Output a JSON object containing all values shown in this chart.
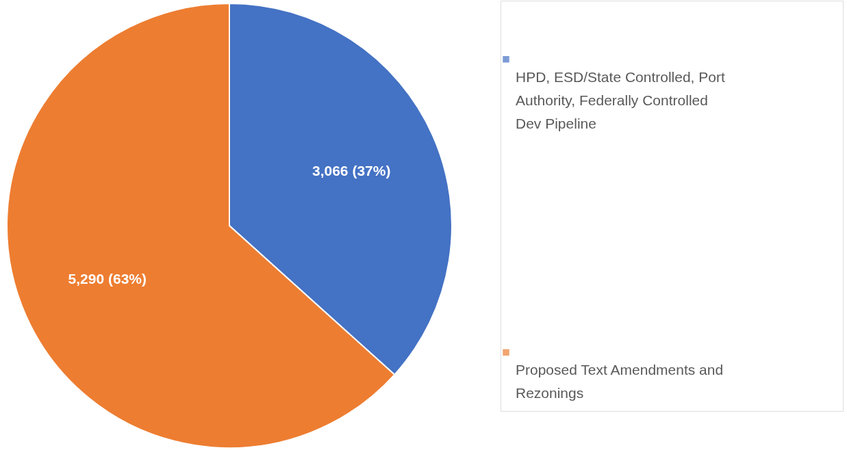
{
  "chart_data": {
    "type": "pie",
    "categories": [
      "HPD, ESD/State Controlled, Port Authority, Federally Controlled Dev Pipeline",
      "Proposed Text Amendments and Rezonings"
    ],
    "values": [
      3066,
      5290
    ],
    "colors": [
      "#4472c4",
      "#ed7d31"
    ],
    "value_labels": [
      "3,066 (37%)",
      "5,290 (63%)"
    ],
    "legend": "right"
  }
}
